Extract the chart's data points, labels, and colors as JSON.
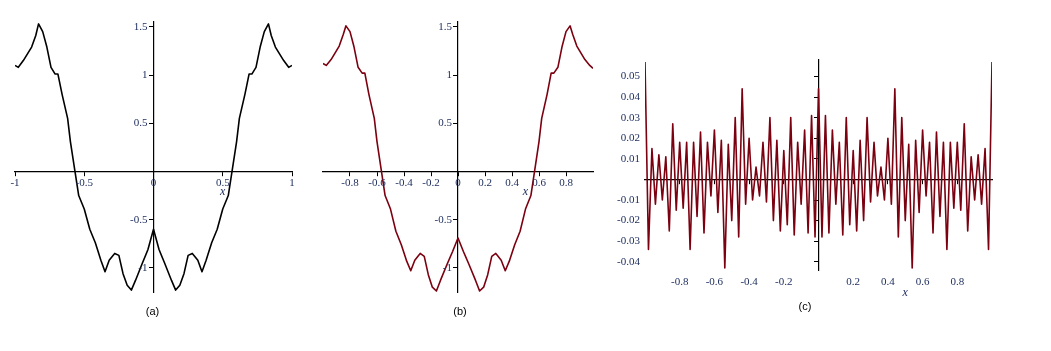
{
  "chart_data": [
    {
      "type": "line",
      "xlabel": "x",
      "annotations": [
        "(a)"
      ],
      "xlim": [
        -1,
        1
      ],
      "ylim": [
        -1.25,
        1.55
      ],
      "xticks": [
        -1,
        -0.5,
        0,
        0.5,
        1
      ],
      "yticks": [
        -1,
        -0.5,
        0.5,
        1,
        1.5
      ],
      "series": [
        {
          "color": "#000000",
          "x": [
            -1,
            -0.976,
            -0.94,
            -0.91,
            -0.88,
            -0.85,
            -0.83,
            -0.8,
            -0.77,
            -0.74,
            -0.71,
            -0.69,
            -0.66,
            -0.62,
            -0.6,
            -0.567,
            -0.54,
            -0.5,
            -0.46,
            -0.42,
            -0.38,
            -0.35,
            -0.32,
            -0.28,
            -0.25,
            -0.22,
            -0.19,
            -0.16,
            -0.13,
            -0.08,
            -0.04,
            0,
            0.04,
            0.08,
            0.13,
            0.16,
            0.19,
            0.22,
            0.25,
            0.28,
            0.32,
            0.35,
            0.38,
            0.42,
            0.46,
            0.5,
            0.54,
            0.567,
            0.6,
            0.62,
            0.66,
            0.69,
            0.71,
            0.74,
            0.77,
            0.8,
            0.83,
            0.85,
            0.88,
            0.91,
            0.94,
            0.976,
            1
          ],
          "values": [
            1.1,
            1.08,
            1.15,
            1.22,
            1.29,
            1.41,
            1.53,
            1.45,
            1.29,
            1.08,
            1.01,
            1.01,
            0.8,
            0.55,
            0.31,
            0,
            -0.25,
            -0.39,
            -0.6,
            -0.74,
            -0.92,
            -1.04,
            -0.92,
            -0.85,
            -0.87,
            -1.06,
            -1.18,
            -1.23,
            -1.13,
            -0.95,
            -0.81,
            -0.6,
            -0.81,
            -0.95,
            -1.13,
            -1.23,
            -1.18,
            -1.06,
            -0.87,
            -0.85,
            -0.92,
            -1.04,
            -0.92,
            -0.74,
            -0.6,
            -0.39,
            -0.25,
            0,
            0.31,
            0.55,
            0.8,
            1.01,
            1.01,
            1.08,
            1.29,
            1.45,
            1.53,
            1.41,
            1.29,
            1.22,
            1.15,
            1.08,
            1.1
          ]
        }
      ]
    },
    {
      "type": "line",
      "xlabel": "x",
      "annotations": [
        "(b)"
      ],
      "xlim": [
        -1,
        1
      ],
      "ylim": [
        -1.25,
        1.55
      ],
      "xticks": [
        -0.8,
        -0.6,
        -0.4,
        -0.2,
        0,
        0.2,
        0.4,
        0.6,
        0.8
      ],
      "yticks": [
        -1,
        -0.5,
        0.5,
        1,
        1.5
      ],
      "series": [
        {
          "color": "#7b0010",
          "x": [
            -1,
            -0.976,
            -0.94,
            -0.91,
            -0.88,
            -0.85,
            -0.83,
            -0.8,
            -0.77,
            -0.74,
            -0.71,
            -0.69,
            -0.66,
            -0.62,
            -0.6,
            -0.567,
            -0.54,
            -0.5,
            -0.46,
            -0.42,
            -0.38,
            -0.35,
            -0.32,
            -0.28,
            -0.25,
            -0.22,
            -0.19,
            -0.16,
            -0.13,
            -0.08,
            -0.04,
            0,
            0.04,
            0.08,
            0.13,
            0.16,
            0.19,
            0.22,
            0.25,
            0.28,
            0.32,
            0.35,
            0.38,
            0.42,
            0.46,
            0.5,
            0.54,
            0.567,
            0.6,
            0.62,
            0.66,
            0.69,
            0.71,
            0.74,
            0.77,
            0.8,
            0.83,
            0.85,
            0.88,
            0.91,
            0.94,
            0.976,
            1
          ],
          "values": [
            1.12,
            1.1,
            1.16,
            1.23,
            1.3,
            1.42,
            1.51,
            1.45,
            1.29,
            1.08,
            1.02,
            1.02,
            0.8,
            0.55,
            0.31,
            0,
            -0.25,
            -0.39,
            -0.62,
            -0.76,
            -0.93,
            -1.03,
            -0.92,
            -0.85,
            -0.88,
            -1.07,
            -1.2,
            -1.24,
            -1.13,
            -0.96,
            -0.83,
            -0.69,
            -0.83,
            -0.96,
            -1.13,
            -1.24,
            -1.2,
            -1.07,
            -0.88,
            -0.85,
            -0.92,
            -1.03,
            -0.93,
            -0.76,
            -0.62,
            -0.39,
            -0.25,
            0,
            0.31,
            0.55,
            0.8,
            1.02,
            1.02,
            1.08,
            1.29,
            1.45,
            1.51,
            1.42,
            1.3,
            1.23,
            1.16,
            1.1,
            1.07
          ]
        }
      ]
    },
    {
      "type": "line",
      "xlabel": "x",
      "annotations": [
        "(c)"
      ],
      "xlim": [
        -1,
        1
      ],
      "ylim": [
        -0.044,
        0.058
      ],
      "xticks": [
        -0.8,
        -0.6,
        -0.4,
        -0.2,
        0.2,
        0.4,
        0.6,
        0.8
      ],
      "yticks": [
        -0.04,
        -0.03,
        -0.02,
        -0.01,
        0.01,
        0.02,
        0.03,
        0.04,
        0.05
      ],
      "series": [
        {
          "color": "#7b0010",
          "x": [
            -1,
            -0.98,
            -0.96,
            -0.94,
            -0.92,
            -0.9,
            -0.88,
            -0.86,
            -0.84,
            -0.82,
            -0.8,
            -0.78,
            -0.76,
            -0.74,
            -0.72,
            -0.7,
            -0.68,
            -0.66,
            -0.64,
            -0.62,
            -0.6,
            -0.58,
            -0.56,
            -0.54,
            -0.52,
            -0.5,
            -0.48,
            -0.46,
            -0.44,
            -0.42,
            -0.4,
            -0.38,
            -0.36,
            -0.34,
            -0.32,
            -0.3,
            -0.28,
            -0.26,
            -0.24,
            -0.22,
            -0.2,
            -0.18,
            -0.16,
            -0.14,
            -0.12,
            -0.1,
            -0.08,
            -0.06,
            -0.04,
            -0.02,
            0,
            0.02,
            0.04,
            0.06,
            0.08,
            0.1,
            0.12,
            0.14,
            0.16,
            0.18,
            0.2,
            0.22,
            0.24,
            0.26,
            0.28,
            0.3,
            0.32,
            0.34,
            0.36,
            0.38,
            0.4,
            0.42,
            0.44,
            0.46,
            0.48,
            0.5,
            0.52,
            0.54,
            0.56,
            0.58,
            0.6,
            0.62,
            0.64,
            0.66,
            0.68,
            0.7,
            0.72,
            0.74,
            0.76,
            0.78,
            0.8,
            0.82,
            0.84,
            0.86,
            0.88,
            0.9,
            0.92,
            0.94,
            0.96,
            0.98,
            1
          ],
          "values": [
            0.057,
            -0.034,
            0.015,
            -0.012,
            0.012,
            -0.01,
            0.011,
            -0.025,
            0.027,
            -0.015,
            0.018,
            -0.014,
            0.018,
            -0.034,
            0.018,
            -0.018,
            0.023,
            -0.026,
            0.018,
            -0.008,
            0.024,
            -0.016,
            0.019,
            -0.043,
            0.017,
            -0.02,
            0.03,
            -0.028,
            0.044,
            -0.012,
            0.02,
            -0.01,
            0.006,
            -0.008,
            0.018,
            -0.011,
            0.03,
            -0.02,
            0.019,
            -0.025,
            0.014,
            -0.022,
            0.03,
            -0.027,
            0.018,
            -0.012,
            0.024,
            -0.026,
            0.031,
            -0.028,
            0.044,
            -0.028,
            0.031,
            -0.026,
            0.024,
            -0.012,
            0.018,
            -0.027,
            0.03,
            -0.022,
            0.014,
            -0.025,
            0.019,
            -0.02,
            0.03,
            -0.011,
            0.018,
            -0.008,
            0.006,
            -0.01,
            0.02,
            -0.012,
            0.044,
            -0.028,
            0.03,
            -0.02,
            0.017,
            -0.043,
            0.019,
            -0.016,
            0.024,
            -0.008,
            0.018,
            -0.026,
            0.023,
            -0.018,
            0.018,
            -0.034,
            0.018,
            -0.014,
            0.018,
            -0.015,
            0.027,
            -0.025,
            0.011,
            -0.01,
            0.012,
            -0.012,
            0.015,
            -0.034,
            0.057
          ]
        }
      ]
    }
  ]
}
